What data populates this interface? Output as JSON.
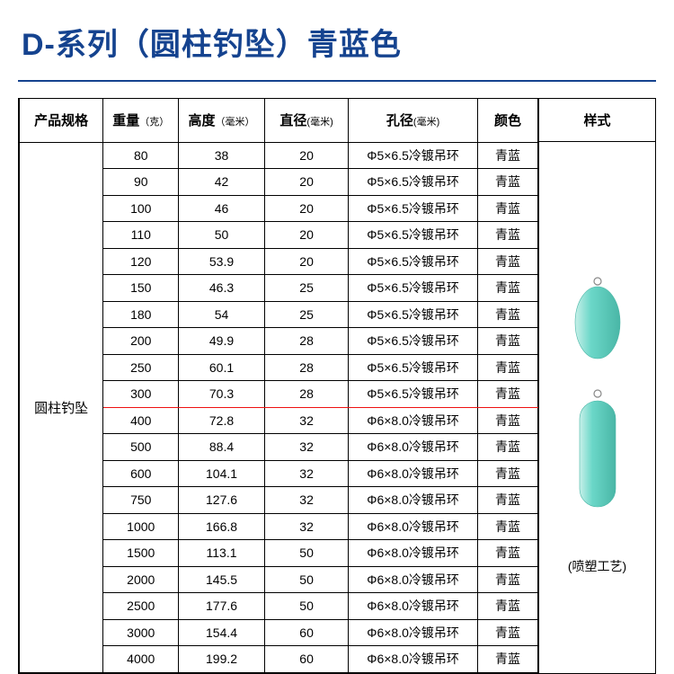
{
  "title": "D-系列（圆柱钓坠）青蓝色",
  "headers": {
    "spec": "产品规格",
    "weight": "重量",
    "weight_unit": "（克）",
    "height": "高度",
    "height_unit": "（毫米）",
    "diameter": "直径",
    "diameter_unit": "(毫米)",
    "hole": "孔径",
    "hole_unit": "(毫米)",
    "color": "颜色",
    "style": "样式"
  },
  "spec_label": "圆柱钓坠",
  "style_caption": "(喷塑工艺)",
  "hole_a": "Φ5×6.5冷镀吊环",
  "hole_b": "Φ6×8.0冷镀吊环",
  "color_val": "青蓝",
  "product_color": "#6bd7c8",
  "product_edge": "#49b6a6",
  "red_line_after_index": 9,
  "rows": [
    {
      "w": "80",
      "h": "38",
      "d": "20",
      "k": "a"
    },
    {
      "w": "90",
      "h": "42",
      "d": "20",
      "k": "a"
    },
    {
      "w": "100",
      "h": "46",
      "d": "20",
      "k": "a"
    },
    {
      "w": "110",
      "h": "50",
      "d": "20",
      "k": "a"
    },
    {
      "w": "120",
      "h": "53.9",
      "d": "20",
      "k": "a"
    },
    {
      "w": "150",
      "h": "46.3",
      "d": "25",
      "k": "a"
    },
    {
      "w": "180",
      "h": "54",
      "d": "25",
      "k": "a"
    },
    {
      "w": "200",
      "h": "49.9",
      "d": "28",
      "k": "a"
    },
    {
      "w": "250",
      "h": "60.1",
      "d": "28",
      "k": "a"
    },
    {
      "w": "300",
      "h": "70.3",
      "d": "28",
      "k": "a"
    },
    {
      "w": "400",
      "h": "72.8",
      "d": "32",
      "k": "b"
    },
    {
      "w": "500",
      "h": "88.4",
      "d": "32",
      "k": "b"
    },
    {
      "w": "600",
      "h": "104.1",
      "d": "32",
      "k": "b"
    },
    {
      "w": "750",
      "h": "127.6",
      "d": "32",
      "k": "b"
    },
    {
      "w": "1000",
      "h": "166.8",
      "d": "32",
      "k": "b"
    },
    {
      "w": "1500",
      "h": "113.1",
      "d": "50",
      "k": "b"
    },
    {
      "w": "2000",
      "h": "145.5",
      "d": "50",
      "k": "b"
    },
    {
      "w": "2500",
      "h": "177.6",
      "d": "50",
      "k": "b"
    },
    {
      "w": "3000",
      "h": "154.4",
      "d": "60",
      "k": "b"
    },
    {
      "w": "4000",
      "h": "199.2",
      "d": "60",
      "k": "b"
    }
  ]
}
